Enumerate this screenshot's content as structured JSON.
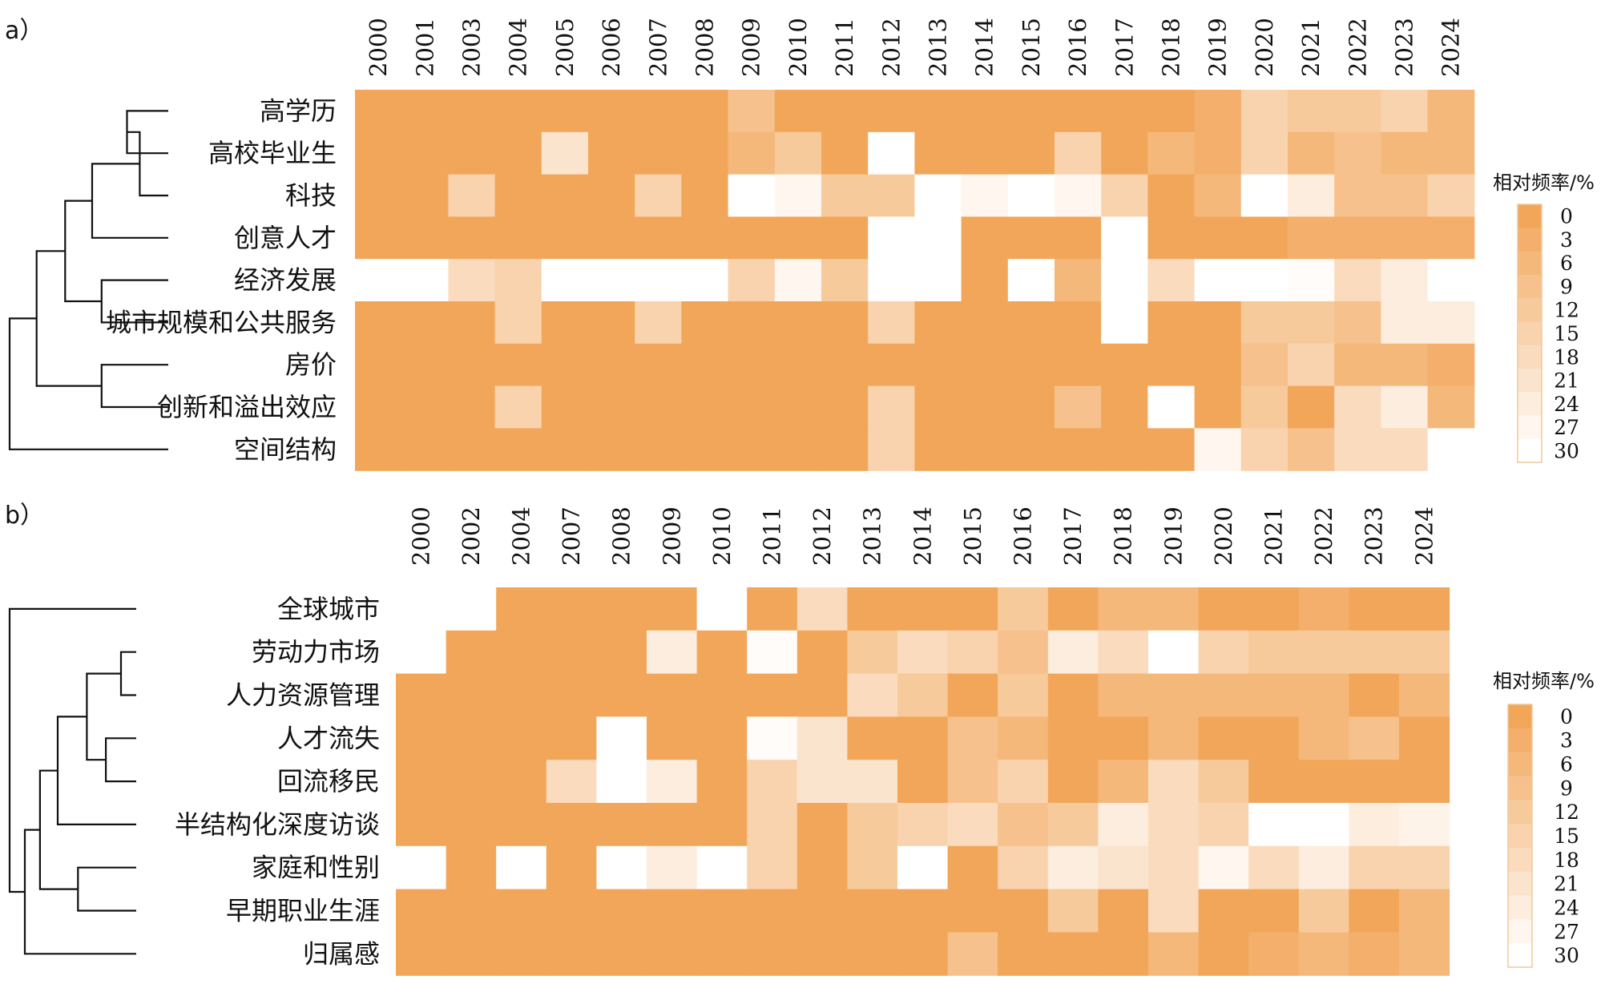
{
  "chart_data": [
    {
      "type": "heatmap",
      "panel_label": "a）",
      "legend_title": "相对频率/%",
      "legend_ticks": [
        0,
        3,
        6,
        9,
        12,
        15,
        18,
        21,
        24,
        27,
        30
      ],
      "color_scale": {
        "low": "#F2A65A",
        "high": "#FFFFFF",
        "min": 0,
        "max": 30
      },
      "x": [
        "2000",
        "2001",
        "2003",
        "2004",
        "2005",
        "2006",
        "2007",
        "2008",
        "2009",
        "2010",
        "2011",
        "2012",
        "2013",
        "2014",
        "2015",
        "2016",
        "2017",
        "2018",
        "2019",
        "2020",
        "2021",
        "2022",
        "2023",
        "2024"
      ],
      "y": [
        "高学历",
        "高校毕业生",
        "科技",
        "创意人才",
        "经济发展",
        "城市规模和公共服务",
        "房价",
        "创新和溢出效应",
        "空间结构"
      ],
      "values": [
        [
          0,
          0,
          0,
          0,
          0,
          0,
          0,
          0,
          9,
          0,
          0,
          0,
          0,
          0,
          0,
          0,
          0,
          0,
          3,
          15,
          12,
          12,
          15,
          6
        ],
        [
          0,
          0,
          0,
          0,
          21,
          0,
          0,
          0,
          6,
          12,
          0,
          30,
          0,
          0,
          0,
          15,
          0,
          6,
          3,
          15,
          6,
          9,
          6,
          6
        ],
        [
          0,
          0,
          15,
          0,
          0,
          0,
          15,
          0,
          30,
          27,
          12,
          12,
          30,
          27,
          30,
          27,
          15,
          0,
          6,
          30,
          24,
          9,
          9,
          15
        ],
        [
          0,
          0,
          0,
          0,
          0,
          0,
          0,
          0,
          0,
          0,
          0,
          30,
          30,
          0,
          0,
          0,
          30,
          0,
          0,
          0,
          3,
          3,
          3,
          3
        ],
        [
          30,
          30,
          18,
          15,
          30,
          30,
          30,
          30,
          15,
          27,
          12,
          30,
          30,
          0,
          30,
          6,
          30,
          18,
          30,
          30,
          29,
          18,
          24,
          30
        ],
        [
          0,
          0,
          0,
          15,
          0,
          0,
          15,
          0,
          0,
          0,
          0,
          15,
          0,
          0,
          0,
          0,
          30,
          0,
          0,
          12,
          12,
          9,
          24,
          24
        ],
        [
          0,
          0,
          0,
          0,
          0,
          0,
          0,
          0,
          0,
          0,
          0,
          0,
          0,
          0,
          0,
          0,
          0,
          0,
          0,
          9,
          15,
          6,
          6,
          3
        ],
        [
          0,
          0,
          0,
          15,
          0,
          0,
          0,
          0,
          0,
          0,
          0,
          15,
          0,
          0,
          0,
          9,
          0,
          30,
          0,
          12,
          0,
          18,
          24,
          6
        ],
        [
          0,
          0,
          0,
          0,
          0,
          0,
          0,
          0,
          0,
          0,
          0,
          15,
          0,
          0,
          0,
          0,
          0,
          0,
          27,
          15,
          9,
          18,
          18,
          30
        ]
      ],
      "dendrogram": [
        {
          "a": "l0",
          "b": "l1",
          "h": 0.26,
          "id": "c1"
        },
        {
          "a": "l2",
          "b": "c1",
          "h": 0.18,
          "id": "c2"
        },
        {
          "a": "l3",
          "b": "c2",
          "h": 0.48,
          "id": "c3"
        },
        {
          "a": "l4",
          "b": "l5",
          "h": 0.42,
          "id": "c4"
        },
        {
          "a": "c3",
          "b": "c4",
          "h": 0.65,
          "id": "c5"
        },
        {
          "a": "l6",
          "b": "l7",
          "h": 0.42,
          "id": "c6"
        },
        {
          "a": "c5",
          "b": "c6",
          "h": 0.83,
          "id": "c7"
        },
        {
          "a": "c7",
          "b": "l8",
          "h": 1.0,
          "id": "c8"
        }
      ]
    },
    {
      "type": "heatmap",
      "panel_label": "b）",
      "legend_title": "相对频率/%",
      "legend_ticks": [
        0,
        3,
        6,
        9,
        12,
        15,
        18,
        21,
        24,
        27,
        30
      ],
      "color_scale": {
        "low": "#F2A65A",
        "high": "#FFFFFF",
        "min": 0,
        "max": 30
      },
      "x": [
        "2000",
        "2002",
        "2004",
        "2007",
        "2008",
        "2009",
        "2010",
        "2011",
        "2012",
        "2013",
        "2014",
        "2015",
        "2016",
        "2017",
        "2018",
        "2019",
        "2020",
        "2021",
        "2022",
        "2023",
        "2024"
      ],
      "y": [
        "全球城市",
        "劳动力市场",
        "人力资源管理",
        "人才流失",
        "回流移民",
        "半结构化深度访谈",
        "家庭和性别",
        "早期职业生涯",
        "归属感"
      ],
      "values": [
        [
          30,
          30,
          0,
          0,
          0,
          0,
          30,
          0,
          18,
          0,
          0,
          0,
          12,
          0,
          6,
          6,
          0,
          0,
          3,
          0,
          0
        ],
        [
          30,
          0,
          0,
          0,
          0,
          24,
          0,
          29,
          0,
          12,
          18,
          15,
          9,
          24,
          18,
          30,
          15,
          12,
          12,
          12,
          12
        ],
        [
          0,
          0,
          0,
          0,
          0,
          0,
          0,
          0,
          0,
          18,
          12,
          0,
          12,
          0,
          6,
          6,
          6,
          6,
          6,
          0,
          6
        ],
        [
          0,
          0,
          0,
          0,
          30,
          0,
          0,
          29,
          21,
          0,
          0,
          9,
          6,
          0,
          0,
          6,
          0,
          0,
          6,
          9,
          0
        ],
        [
          0,
          0,
          0,
          18,
          30,
          24,
          0,
          15,
          21,
          21,
          0,
          9,
          15,
          0,
          6,
          18,
          12,
          0,
          0,
          0,
          0
        ],
        [
          0,
          0,
          0,
          0,
          0,
          0,
          0,
          15,
          0,
          12,
          15,
          18,
          9,
          12,
          24,
          18,
          15,
          30,
          30,
          24,
          26
        ],
        [
          30,
          0,
          30,
          0,
          30,
          24,
          30,
          15,
          0,
          12,
          30,
          0,
          15,
          24,
          21,
          18,
          27,
          18,
          24,
          15,
          15
        ],
        [
          0,
          0,
          0,
          0,
          0,
          0,
          0,
          0,
          0,
          0,
          0,
          0,
          0,
          12,
          0,
          18,
          0,
          0,
          12,
          0,
          6
        ],
        [
          0,
          0,
          0,
          0,
          0,
          0,
          0,
          0,
          0,
          0,
          0,
          9,
          0,
          0,
          0,
          6,
          0,
          3,
          6,
          3,
          6
        ]
      ],
      "dendrogram": [
        {
          "a": "l1",
          "b": "l2",
          "h": 0.12,
          "id": "d1"
        },
        {
          "a": "l3",
          "b": "l4",
          "h": 0.24,
          "id": "d2"
        },
        {
          "a": "d1",
          "b": "d2",
          "h": 0.39,
          "id": "d3"
        },
        {
          "a": "d3",
          "b": "l5",
          "h": 0.62,
          "id": "d4"
        },
        {
          "a": "l6",
          "b": "l7",
          "h": 0.46,
          "id": "d5"
        },
        {
          "a": "d4",
          "b": "d5",
          "h": 0.76,
          "id": "d6"
        },
        {
          "a": "d6",
          "b": "l8",
          "h": 0.88,
          "id": "d7"
        },
        {
          "a": "l0",
          "b": "d7",
          "h": 1.0,
          "id": "d8"
        }
      ]
    }
  ]
}
